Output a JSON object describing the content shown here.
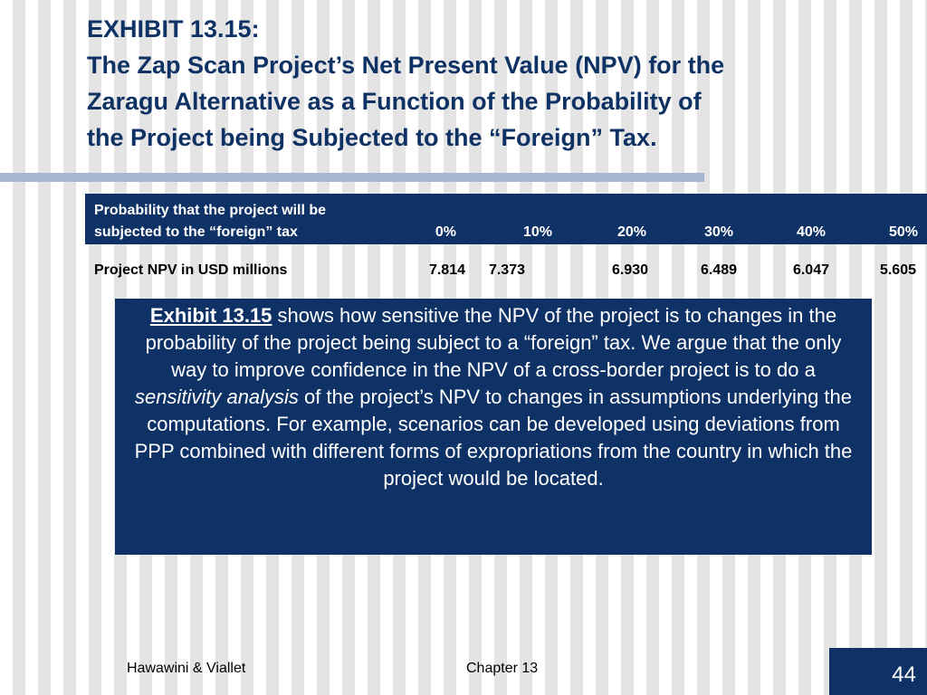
{
  "title": {
    "exhibit": "EXHIBIT 13.15:",
    "lines": [
      "The Zap Scan Project’s Net Present Value (NPV) for the",
      "Zaragu Alternative as a Function of the Probability of",
      "the Project being Subjected to the “Foreign” Tax."
    ]
  },
  "table": {
    "header_label_lines": [
      "Probability that the project will be",
      "subjected to the “foreign” tax"
    ],
    "probabilities": [
      "0%",
      "10%",
      "20%",
      "30%",
      "40%",
      "50%"
    ],
    "row_label": "Project NPV in USD millions",
    "npv_values": [
      "7.814",
      "7.373",
      "6.930",
      "6.489",
      "6.047",
      "5.605"
    ]
  },
  "description": {
    "exhibit_ref": "Exhibit 13.15",
    "text_1": " shows how sensitive the NPV of the project is to changes in the probability of the project being subject to a “foreign” tax.  We argue that the only way to improve confidence in the NPV of a cross-border project is to do a ",
    "emphasis": "sensitivity analysis",
    "text_2": " of the project’s NPV to changes in assumptions underlying the computations.  For example, scenarios can be developed using deviations from PPP combined with different forms of expropriations from the country in which the project would be located."
  },
  "footer": {
    "authors": "Hawawini & Viallet",
    "chapter": "Chapter 13",
    "page_number": "44"
  },
  "colors": {
    "navy": "#0e3166",
    "title_blue": "#0f3264",
    "rule": "#a7b6d0"
  }
}
